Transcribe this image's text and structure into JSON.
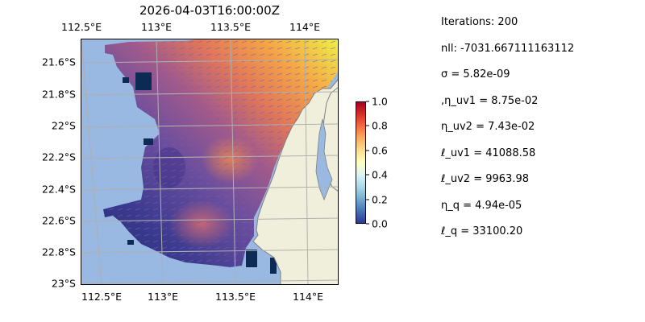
{
  "title": "2026-04-03T16:00:00Z",
  "map": {
    "lon_ticks": [
      "112.5°E",
      "113°E",
      "113.5°E",
      "114°E"
    ],
    "lat_ticks": [
      "21.6°S",
      "21.8°S",
      "22°S",
      "22.2°S",
      "22.4°S",
      "22.6°S",
      "22.8°S",
      "23°S"
    ],
    "colors": {
      "ocean": "#99b8e2",
      "land": "#efefdc",
      "coast": "#808080",
      "grid": "#b0b0b0"
    },
    "colormap": "RdYlBu_r"
  },
  "colorbar": {
    "ticks": [
      "0.0",
      "0.2",
      "0.4",
      "0.6",
      "0.8",
      "1.0"
    ]
  },
  "stats": [
    "Iterations: 200",
    "nll: -7031.667111163112",
    "σ = 5.82e-09",
    ",η_uv1 = 8.75e-02",
    "η_uv2 = 7.43e-02",
    "ℓ_uv1 = 41088.58",
    "ℓ_uv2 = 9963.98",
    "η_q = 4.94e-05",
    "ℓ_q = 33100.20"
  ]
}
